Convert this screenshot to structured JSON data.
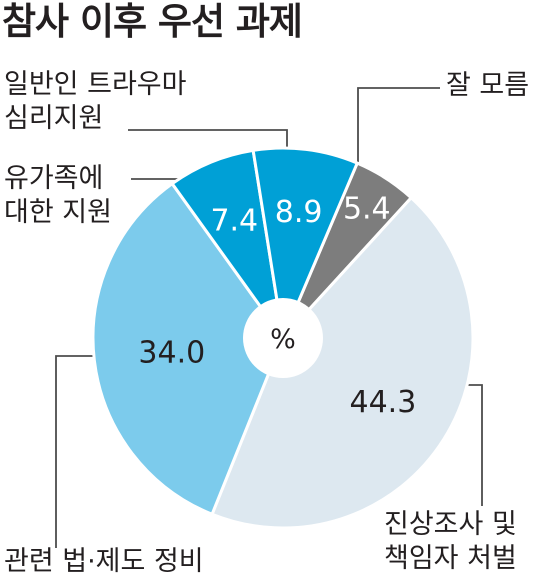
{
  "title": "참사 이후 우선 과제",
  "center_label": "%",
  "colors": {
    "trauma": "#00a0d6",
    "family": "#00a0d6",
    "law": "#7ccbec",
    "truth": "#dde8f0",
    "unsure": "#7d7d7d",
    "leader": "#4d4d4d",
    "value_dark": "#231f20",
    "value_light": "#ffffff"
  },
  "chart_data": {
    "type": "pie",
    "title": "참사 이후 우선 과제",
    "unit": "%",
    "slices": [
      {
        "key": "unsure",
        "label_lines": [
          "잘 모름"
        ],
        "value": 5.4
      },
      {
        "key": "truth",
        "label_lines": [
          "진상조사 및",
          "책임자 처벌"
        ],
        "value": 44.3
      },
      {
        "key": "law",
        "label_lines": [
          "관련 법·제도 정비"
        ],
        "value": 34.0
      },
      {
        "key": "family",
        "label_lines": [
          "유가족에",
          "대한 지원"
        ],
        "value": 7.4
      },
      {
        "key": "trauma",
        "label_lines": [
          "일반인 트라우마",
          "심리지원"
        ],
        "value": 8.9
      }
    ]
  }
}
